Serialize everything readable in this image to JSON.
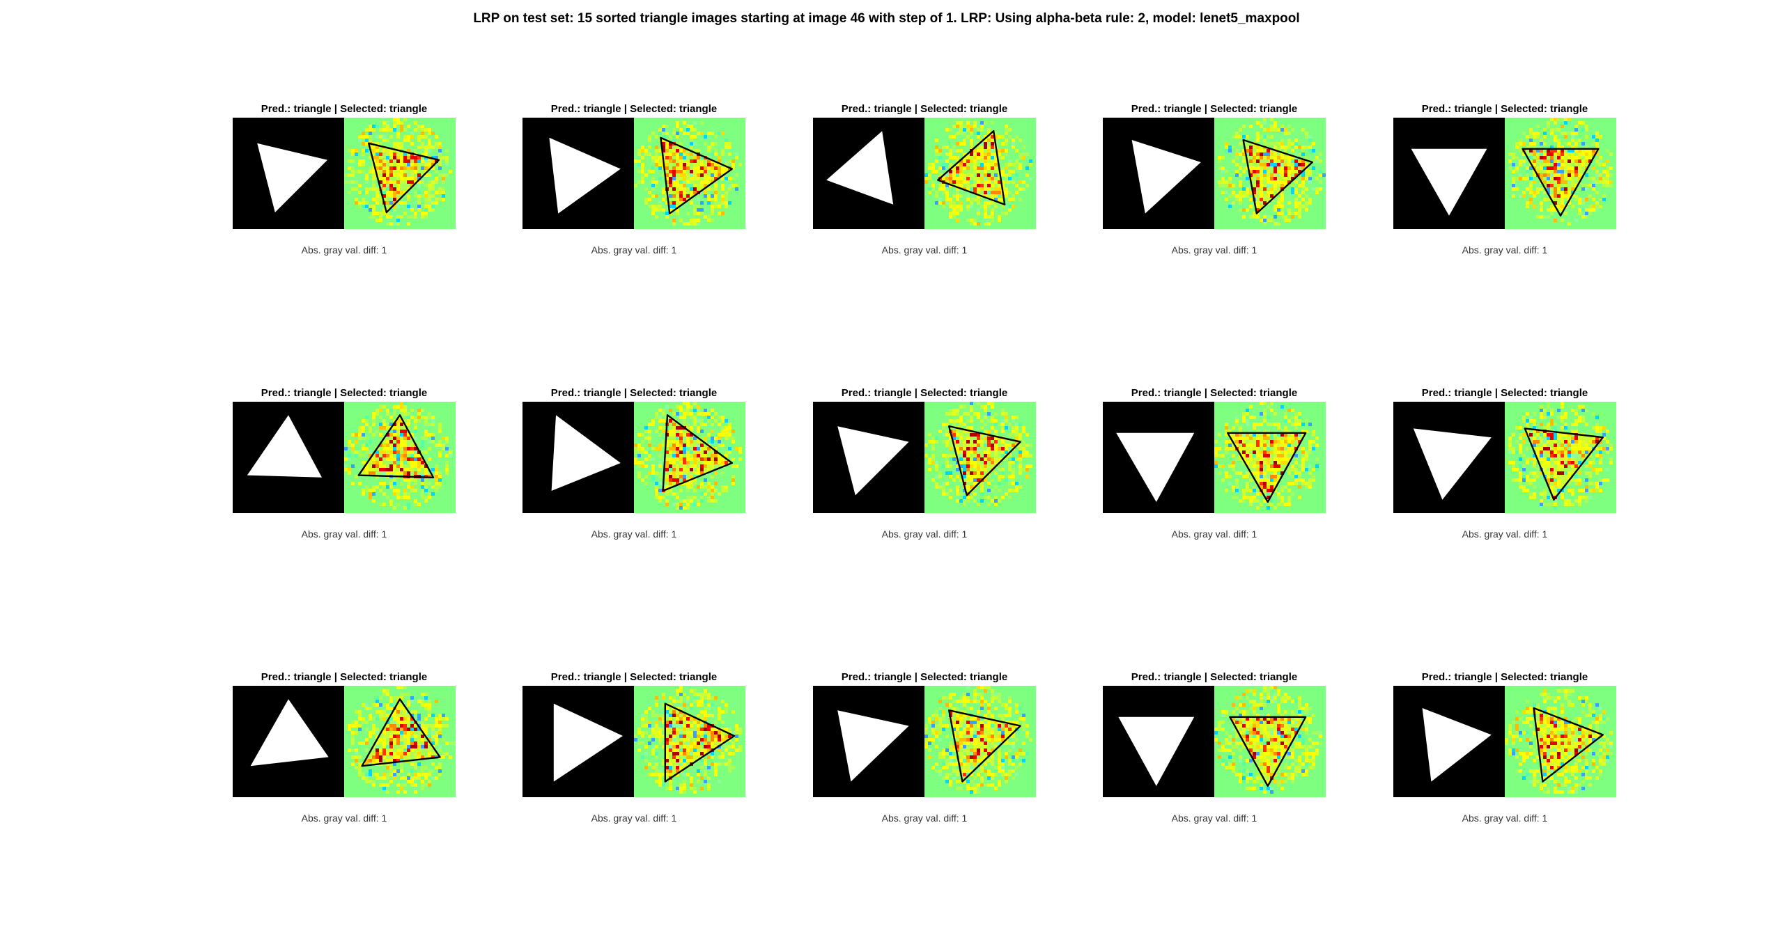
{
  "figure": {
    "title": "LRP on test set: 15 sorted triangle images starting at image 46 with step of 1. LRP: Using alpha-beta rule: 2, model: lenet5_maxpool"
  },
  "panels": [
    {
      "title": "Pred.: triangle | Selected: triangle",
      "caption": "Abs. gray val. diff: 1",
      "shape": [
        [
          0.22,
          0.23
        ],
        [
          0.85,
          0.38
        ],
        [
          0.38,
          0.85
        ]
      ]
    },
    {
      "title": "Pred.: triangle | Selected: triangle",
      "caption": "Abs. gray val. diff: 1",
      "shape": [
        [
          0.24,
          0.18
        ],
        [
          0.88,
          0.46
        ],
        [
          0.32,
          0.86
        ]
      ]
    },
    {
      "title": "Pred.: triangle | Selected: triangle",
      "caption": "Abs. gray val. diff: 1",
      "shape": [
        [
          0.62,
          0.12
        ],
        [
          0.12,
          0.56
        ],
        [
          0.72,
          0.78
        ]
      ]
    },
    {
      "title": "Pred.: triangle | Selected: triangle",
      "caption": "Abs. gray val. diff: 1",
      "shape": [
        [
          0.26,
          0.2
        ],
        [
          0.88,
          0.4
        ],
        [
          0.38,
          0.86
        ]
      ]
    },
    {
      "title": "Pred.: triangle | Selected: triangle",
      "caption": "Abs. gray val. diff: 1",
      "shape": [
        [
          0.16,
          0.28
        ],
        [
          0.84,
          0.28
        ],
        [
          0.5,
          0.88
        ]
      ]
    },
    {
      "title": "Pred.: triangle | Selected: triangle",
      "caption": "Abs. gray val. diff: 1",
      "shape": [
        [
          0.5,
          0.12
        ],
        [
          0.13,
          0.66
        ],
        [
          0.8,
          0.68
        ]
      ]
    },
    {
      "title": "Pred.: triangle | Selected: triangle",
      "caption": "Abs. gray val. diff: 1",
      "shape": [
        [
          0.3,
          0.12
        ],
        [
          0.88,
          0.55
        ],
        [
          0.26,
          0.8
        ]
      ]
    },
    {
      "title": "Pred.: triangle | Selected: triangle",
      "caption": "Abs. gray val. diff: 1",
      "shape": [
        [
          0.22,
          0.22
        ],
        [
          0.86,
          0.36
        ],
        [
          0.38,
          0.84
        ]
      ]
    },
    {
      "title": "Pred.: triangle | Selected: triangle",
      "caption": "Abs. gray val. diff: 1",
      "shape": [
        [
          0.12,
          0.28
        ],
        [
          0.82,
          0.28
        ],
        [
          0.48,
          0.9
        ]
      ]
    },
    {
      "title": "Pred.: triangle | Selected: triangle",
      "caption": "Abs. gray val. diff: 1",
      "shape": [
        [
          0.18,
          0.24
        ],
        [
          0.88,
          0.32
        ],
        [
          0.44,
          0.88
        ]
      ]
    },
    {
      "title": "Pred.: triangle | Selected: triangle",
      "caption": "Abs. gray val. diff: 1",
      "shape": [
        [
          0.5,
          0.12
        ],
        [
          0.16,
          0.72
        ],
        [
          0.86,
          0.64
        ]
      ]
    },
    {
      "title": "Pred.: triangle | Selected: triangle",
      "caption": "Abs. gray val. diff: 1",
      "shape": [
        [
          0.28,
          0.16
        ],
        [
          0.9,
          0.45
        ],
        [
          0.28,
          0.86
        ]
      ]
    },
    {
      "title": "Pred.: triangle | Selected: triangle",
      "caption": "Abs. gray val. diff: 1",
      "shape": [
        [
          0.22,
          0.22
        ],
        [
          0.86,
          0.36
        ],
        [
          0.34,
          0.86
        ]
      ]
    },
    {
      "title": "Pred.: triangle | Selected: triangle",
      "caption": "Abs. gray val. diff: 1",
      "shape": [
        [
          0.14,
          0.28
        ],
        [
          0.82,
          0.28
        ],
        [
          0.48,
          0.9
        ]
      ]
    },
    {
      "title": "Pred.: triangle | Selected: triangle",
      "caption": "Abs. gray val. diff: 1",
      "shape": [
        [
          0.26,
          0.2
        ],
        [
          0.88,
          0.44
        ],
        [
          0.34,
          0.86
        ]
      ]
    }
  ],
  "colors": {
    "mask_background": "#000000",
    "mask_shape": "#ffffff",
    "heatmap_neutral": "#7fff7f",
    "heatmap_outline": "#000000"
  }
}
